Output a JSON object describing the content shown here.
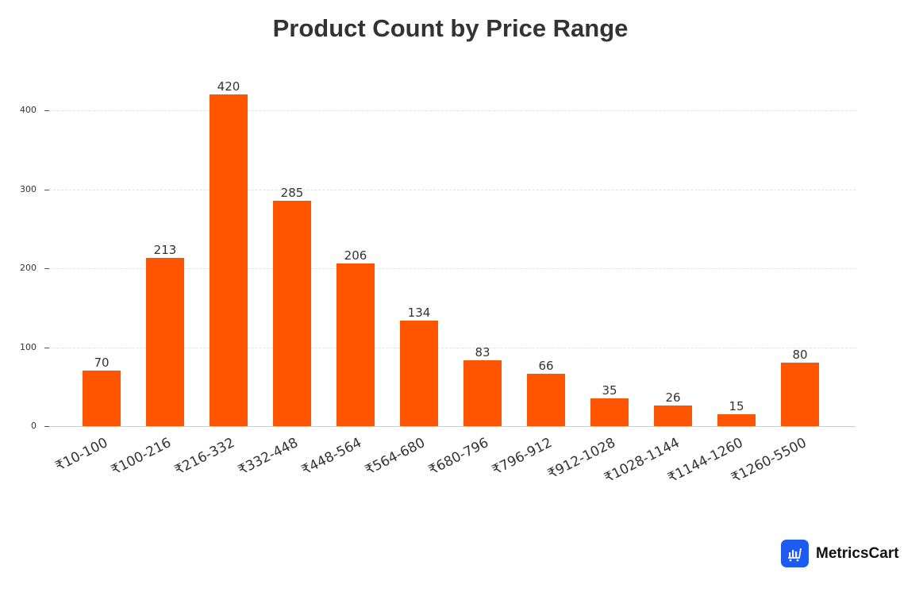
{
  "chart_data": {
    "type": "bar",
    "title": "Product Count by Price Range",
    "xlabel": "",
    "ylabel": "",
    "categories": [
      "₹10-100",
      "₹100-216",
      "₹216-332",
      "₹332-448",
      "₹448-564",
      "₹564-680",
      "₹680-796",
      "₹796-912",
      "₹912-1028",
      "₹1028-1144",
      "₹1144-1260",
      "₹1260-5500"
    ],
    "values": [
      70,
      213,
      420,
      285,
      206,
      134,
      83,
      66,
      35,
      26,
      15,
      80
    ],
    "ylim": [
      0,
      430
    ],
    "yticks": [
      0,
      100,
      200,
      300,
      400
    ],
    "grid": true,
    "bar_color": "#ff5500",
    "data_labels": true,
    "legend": null
  },
  "title": "Product Count by Price Range",
  "y_tick_labels": [
    "0",
    "100",
    "200",
    "300",
    "400"
  ],
  "brand": {
    "name": "MetricsCart",
    "logo_color": "#1e5bf0"
  }
}
